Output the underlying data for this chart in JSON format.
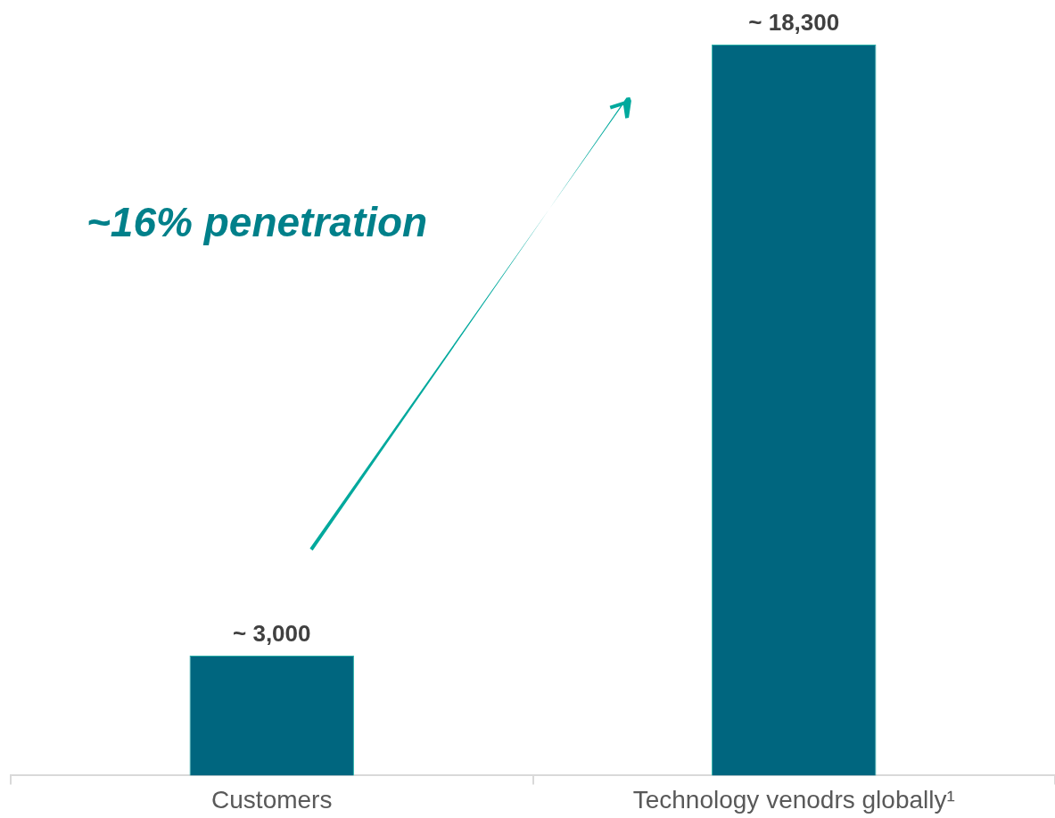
{
  "chart_data": {
    "type": "bar",
    "categories": [
      "Customers",
      "Technology venodrs globally¹"
    ],
    "values": [
      3000,
      18300
    ],
    "color": "#00667f",
    "value_labels": [
      "~ 3,000",
      "~ 18,300"
    ],
    "annotations": [
      "~16% penetration"
    ]
  }
}
